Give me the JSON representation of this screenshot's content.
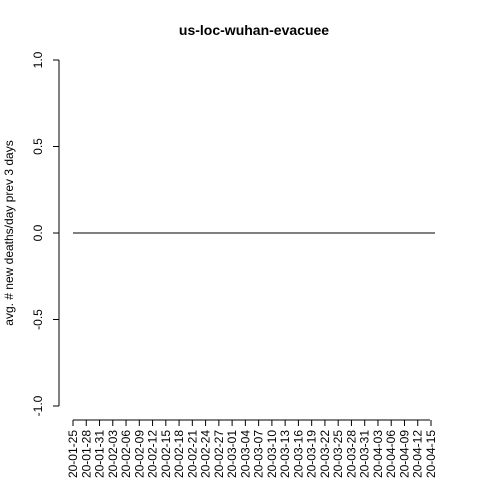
{
  "chart_data": {
    "type": "line",
    "title": "us-loc-wuhan-evacuee",
    "xlabel": "",
    "ylabel": "avg. # new deaths/day prev  3  days",
    "ylim": [
      -1.0,
      1.0
    ],
    "yticks": [
      "-1.0",
      "-0.5",
      "0.0",
      "0.5",
      "1.0"
    ],
    "ytick_values": [
      -1.0,
      -0.5,
      0.0,
      0.5,
      1.0
    ],
    "xtick_labels": [
      "20-01-25",
      "20-01-28",
      "20-01-31",
      "20-02-03",
      "20-02-06",
      "20-02-09",
      "20-02-12",
      "20-02-15",
      "20-02-18",
      "20-02-21",
      "20-02-24",
      "20-02-27",
      "20-03-01",
      "20-03-04",
      "20-03-07",
      "20-03-10",
      "20-03-13",
      "20-03-16",
      "20-03-19",
      "20-03-22",
      "20-03-25",
      "20-03-28",
      "20-03-31",
      "20-04-03",
      "20-04-06",
      "20-04-09",
      "20-04-12",
      "20-04-15"
    ],
    "x_start": "20-01-25",
    "x_end": "20-04-17",
    "series": [
      {
        "values_constant": 0.0,
        "color": "#000000"
      }
    ],
    "grid": false,
    "legend": "none"
  }
}
